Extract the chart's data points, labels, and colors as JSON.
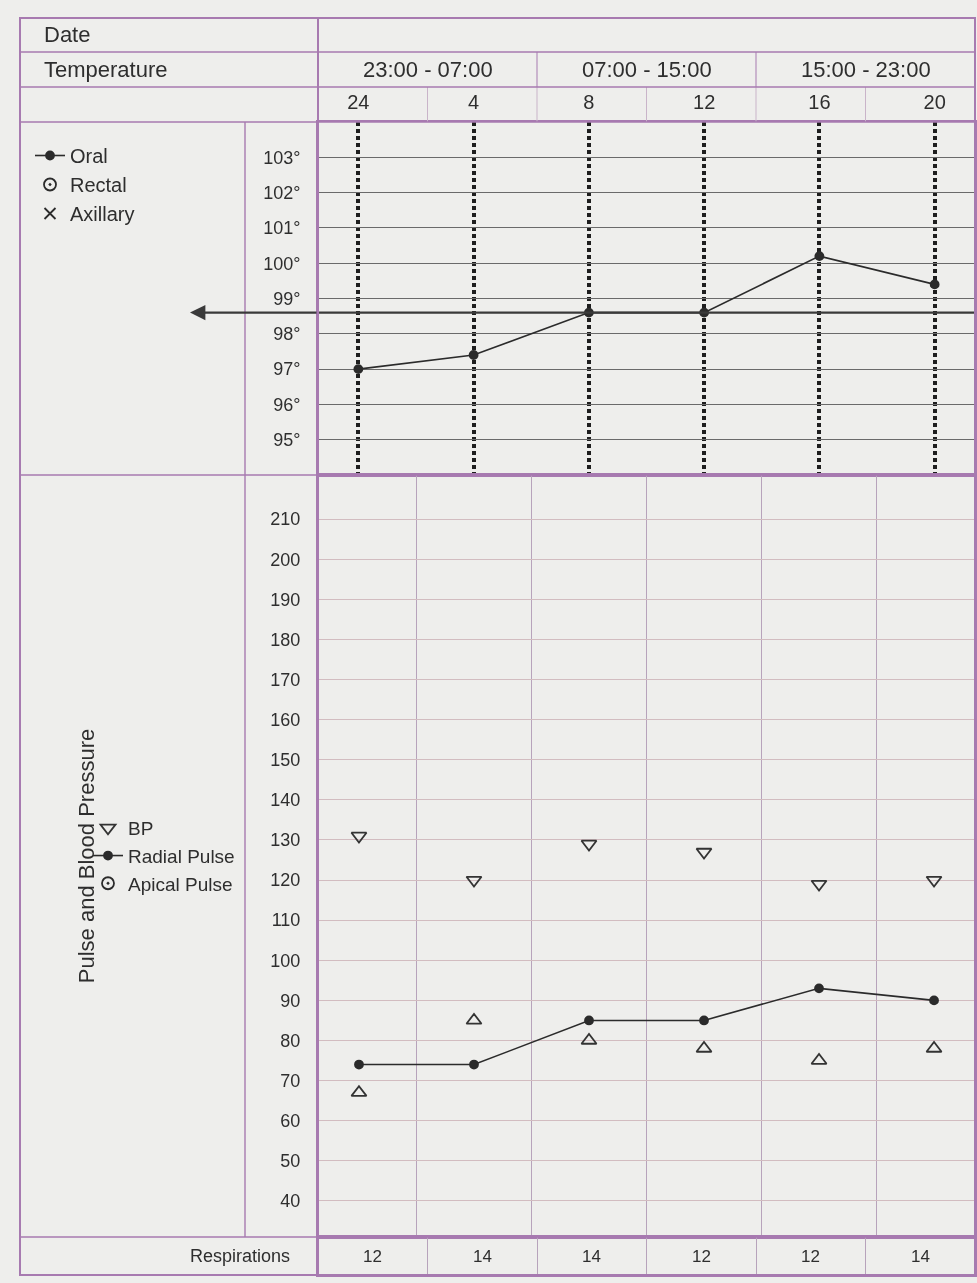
{
  "chart_data": [
    {
      "type": "line",
      "annotations": [
        "Date",
        "Temperature",
        "23:00 - 07:00",
        "07:00 - 15:00",
        "15:00 - 23:00"
      ],
      "categories": [
        "24",
        "4",
        "8",
        "12",
        "16",
        "20"
      ],
      "series": [
        {
          "name": "Oral",
          "color": "#2b2b2b",
          "marker": "circle",
          "values": [
            97,
            97.4,
            98.6,
            98.6,
            100.2,
            99.4
          ]
        },
        {
          "name": "Rectal",
          "type": "scatter",
          "color": "#2b2b2b",
          "marker": "circle-dot",
          "values": [
            null,
            null,
            null,
            null,
            null,
            null
          ]
        },
        {
          "name": "Axillary",
          "type": "scatter",
          "color": "#2b2b2b",
          "marker": "x",
          "values": [
            null,
            null,
            null,
            null,
            null,
            null
          ]
        }
      ],
      "ylim": [
        94,
        104
      ],
      "yticks": [
        {
          "value": 95,
          "label": "95°"
        },
        {
          "value": 96,
          "label": "96°"
        },
        {
          "value": 97,
          "label": "97°"
        },
        {
          "value": 98,
          "label": "98°"
        },
        {
          "value": 99,
          "label": "99°"
        },
        {
          "value": 100,
          "label": "100°"
        },
        {
          "value": 101,
          "label": "101°"
        },
        {
          "value": 102,
          "label": "102°"
        },
        {
          "value": 103,
          "label": "103°"
        }
      ],
      "ref_lines": [
        {
          "axis": "y",
          "value": 98.6,
          "color": "#3a3a3a"
        }
      ],
      "grid": true,
      "legend": "top left"
    },
    {
      "type": "line",
      "ylabel": "Pulse and Blood Pressure",
      "categories": [
        "24",
        "4",
        "8",
        "12",
        "16",
        "20"
      ],
      "tick_labels": "y",
      "series": [
        {
          "name": "BP",
          "type": "scatter",
          "color": "#333333",
          "marker": "triangle-down",
          "values": [
            131,
            120,
            129,
            127,
            119,
            120
          ]
        },
        {
          "type": "scatter",
          "color": "#333333",
          "marker": "triangle-up",
          "values": [
            67,
            85,
            80,
            78,
            75,
            78
          ]
        },
        {
          "name": "Radial Pulse",
          "color": "#2b2b2b",
          "marker": "circle",
          "values": [
            74,
            74,
            85,
            85,
            93,
            90
          ]
        },
        {
          "name": "Apical Pulse",
          "type": "scatter",
          "color": "#2b2b2b",
          "marker": "circle-dot",
          "values": [
            null,
            null,
            null,
            null,
            null,
            null
          ]
        }
      ],
      "ylim": [
        31,
        221
      ],
      "yticks": [
        40,
        50,
        60,
        70,
        80,
        90,
        100,
        110,
        120,
        130,
        140,
        150,
        160,
        170,
        180,
        190,
        200,
        210
      ],
      "grid": true,
      "legend": "left"
    },
    {
      "type": "other",
      "categories": [
        null,
        null,
        null,
        null,
        null,
        null
      ],
      "series": [
        {
          "name": "Respirations",
          "values": [
            12,
            14,
            14,
            12,
            12,
            14
          ]
        }
      ],
      "data_labels": true
    }
  ]
}
